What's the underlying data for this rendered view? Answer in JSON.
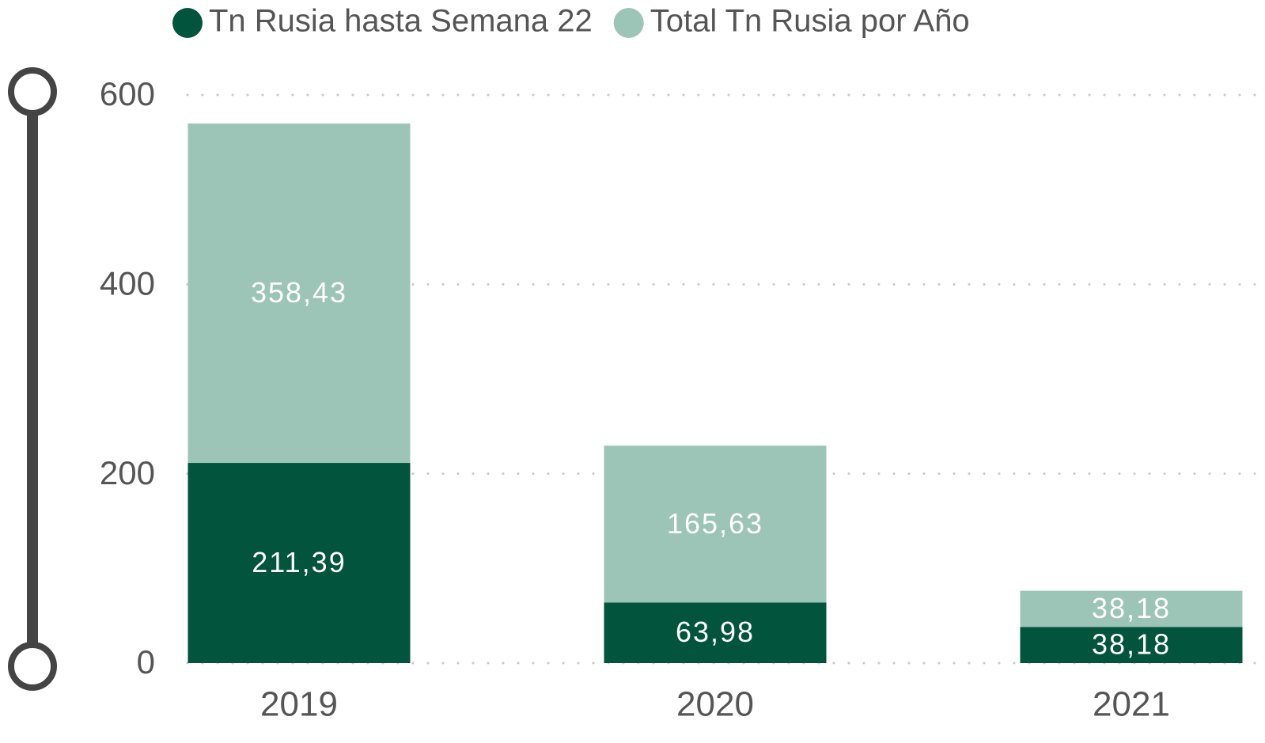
{
  "chart_data": {
    "type": "bar",
    "stacked": true,
    "categories": [
      "2019",
      "2020",
      "2021"
    ],
    "series": [
      {
        "name": "Tn Rusia hasta Semana 22",
        "color": "#02543c",
        "values": [
          211.39,
          63.98,
          38.18
        ],
        "value_labels": [
          "211,39",
          "63,98",
          "38,18"
        ]
      },
      {
        "name": "Total Tn Rusia por Año",
        "color": "#9cc5b8",
        "values": [
          358.43,
          165.63,
          38.18
        ],
        "value_labels": [
          "358,43",
          "165,63",
          "38,18"
        ]
      }
    ],
    "ylim": [
      0,
      600
    ],
    "yticks": [
      0,
      200,
      400,
      600
    ],
    "grid": true,
    "legend": "top"
  }
}
